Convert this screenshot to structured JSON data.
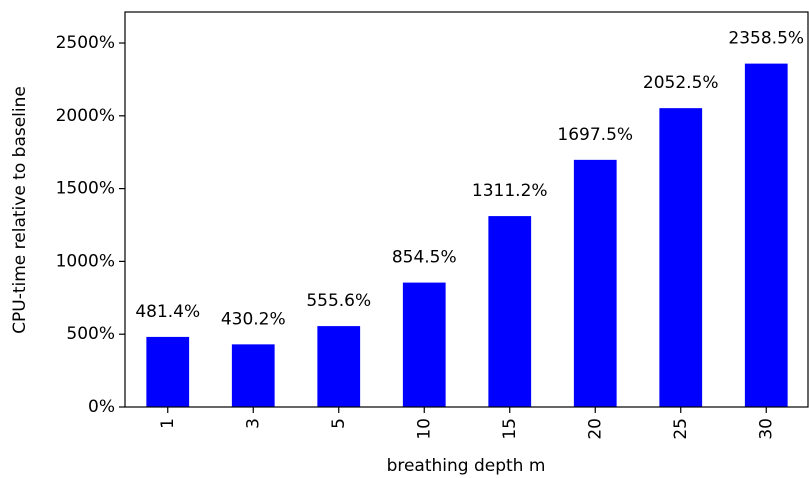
{
  "chart_data": {
    "type": "bar",
    "x_label": "breathing depth m",
    "y_label": "CPU-time relative to baseline",
    "categories": [
      "1",
      "3",
      "5",
      "10",
      "15",
      "20",
      "25",
      "30"
    ],
    "values": [
      481.4,
      430.2,
      555.6,
      854.5,
      1311.2,
      1697.5,
      2052.5,
      2358.5
    ],
    "value_labels": [
      "481.4%",
      "430.2%",
      "555.6%",
      "854.5%",
      "1311.2%",
      "1697.5%",
      "2052.5%",
      "2358.5%"
    ],
    "color": "#0000ff",
    "ylim": [
      0,
      2713
    ],
    "yticks": [
      {
        "value": 0,
        "label": "0%"
      },
      {
        "value": 500,
        "label": "500%"
      },
      {
        "value": 1000,
        "label": "1000%"
      },
      {
        "value": 1500,
        "label": "1500%"
      },
      {
        "value": 2000,
        "label": "2000%"
      },
      {
        "value": 2500,
        "label": "2500%"
      }
    ],
    "grid": false
  }
}
